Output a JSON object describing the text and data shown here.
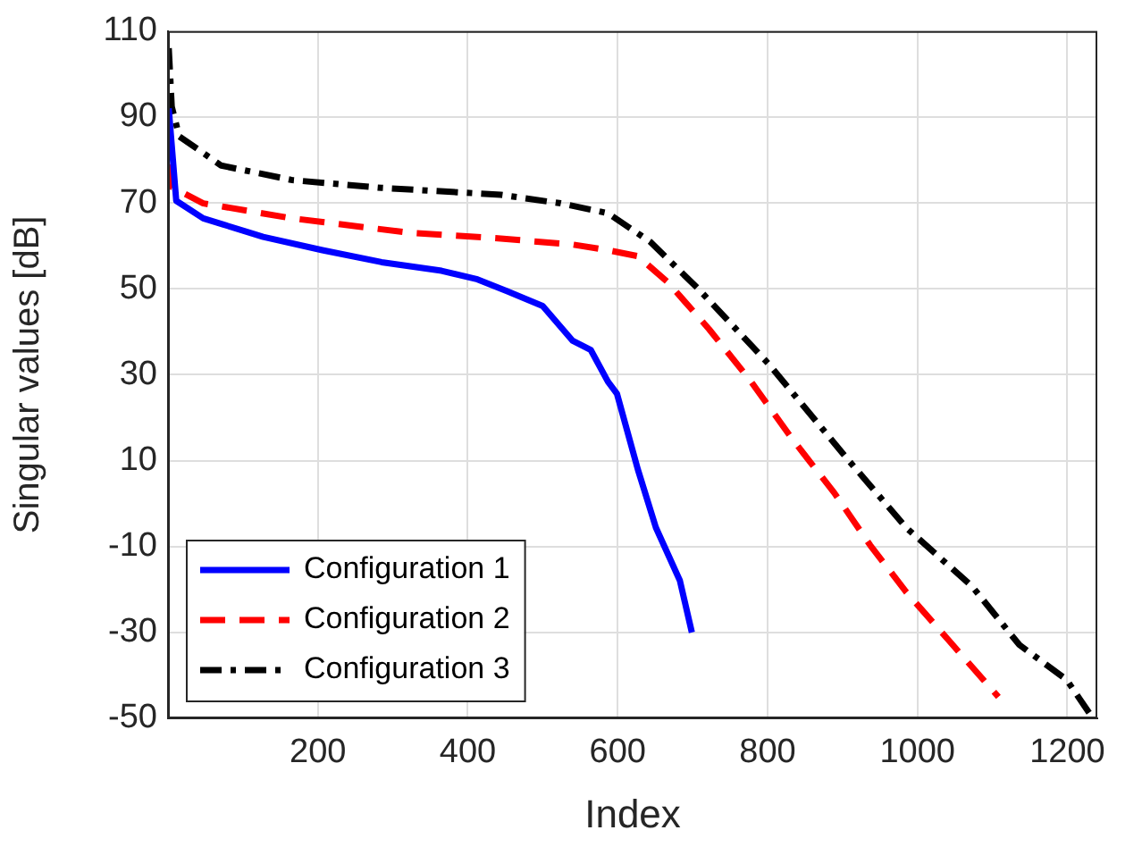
{
  "chart_data": {
    "type": "line",
    "xlabel": "Index",
    "ylabel": "Singular values [dB]",
    "xlim": [
      0,
      1240
    ],
    "xticks": [
      200,
      400,
      600,
      800,
      1000,
      1200
    ],
    "ylim": [
      -50,
      110
    ],
    "yticks": [
      -50,
      -30,
      -10,
      10,
      30,
      50,
      70,
      90,
      110
    ],
    "grid": true,
    "legend": "bottom left",
    "marker": "none",
    "series": [
      {
        "name": "Configuration 1",
        "color": "#0000ff",
        "line_style": "solid",
        "x": [
          1,
          11,
          47,
          127,
          206,
          285,
          365,
          413,
          452,
          500,
          540,
          564,
          587,
          599,
          627,
          651,
          683,
          699
        ],
        "values": [
          92,
          70.5,
          66.4,
          62.1,
          59,
          56.2,
          54.2,
          52.2,
          49.5,
          46,
          37.9,
          35.8,
          28.4,
          25.6,
          7.9,
          -5.6,
          -17.9,
          -30
        ]
      },
      {
        "name": "Configuration 2",
        "color": "#ff0000",
        "line_style": "dashed",
        "x": [
          1,
          2,
          47,
          166,
          325,
          444,
          540,
          587,
          627,
          667,
          722,
          778,
          834,
          889,
          937,
          985,
          1040,
          1108
        ],
        "values": [
          79,
          74,
          69.9,
          66.4,
          63,
          61.7,
          60.3,
          59,
          57.6,
          51.5,
          40.6,
          28.4,
          14.8,
          2.5,
          -9.7,
          -20.6,
          -31.5,
          -45
        ]
      },
      {
        "name": "Configuration 3",
        "color": "#000000",
        "line_style": "dashdot",
        "x": [
          1,
          5,
          15,
          71,
          166,
          285,
          444,
          524,
          587,
          643,
          707,
          802,
          905,
          985,
          1073,
          1136,
          1199,
          1231
        ],
        "values": [
          106,
          92.4,
          85.5,
          78.7,
          75.3,
          73.5,
          71.9,
          69.9,
          67.6,
          61,
          50.1,
          32.4,
          10.7,
          -5.6,
          -19.3,
          -32.9,
          -41,
          -49.2
        ]
      }
    ]
  }
}
